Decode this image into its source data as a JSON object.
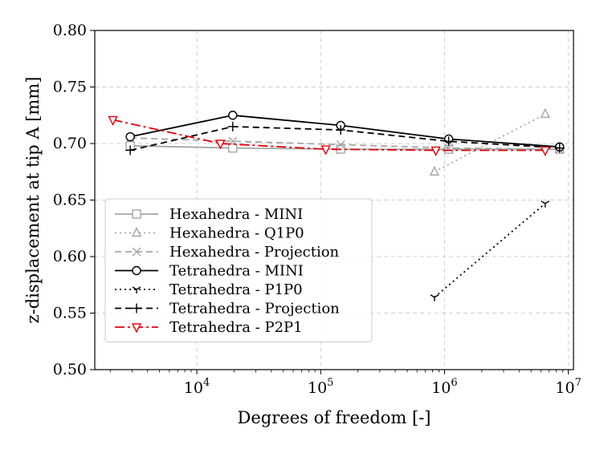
{
  "chart_data": {
    "type": "line",
    "xscale": "log",
    "xlabel": "Degrees of freedom [-]",
    "ylabel": "z-displacement at tip A [mm]",
    "xlim": [
      1500,
      11000000
    ],
    "ylim": [
      0.5,
      0.8
    ],
    "x_ticks": [
      {
        "value": 10000,
        "base": "10",
        "exp": "4"
      },
      {
        "value": 100000,
        "base": "10",
        "exp": "5"
      },
      {
        "value": 1000000,
        "base": "10",
        "exp": "6"
      },
      {
        "value": 10000000,
        "base": "10",
        "exp": "7"
      }
    ],
    "y_ticks": [
      "0.50",
      "0.55",
      "0.60",
      "0.65",
      "0.70",
      "0.75",
      "0.80"
    ],
    "grid": true,
    "legend_position": "lower-left",
    "series": [
      {
        "name": "Hexahedra - MINI",
        "color": "#a6a6a6",
        "dash": "",
        "marker": "square",
        "x": [
          2900,
          19500,
          145000,
          1080000,
          8500000
        ],
        "y": [
          0.698,
          0.696,
          0.695,
          0.695,
          0.695
        ]
      },
      {
        "name": "Hexahedra - Q1P0",
        "color": "#a6a6a6",
        "dash": "2 4",
        "marker": "triangle-up",
        "x": [
          830000,
          6500000
        ],
        "y": [
          0.675,
          0.726
        ]
      },
      {
        "name": "Hexahedra - Projection",
        "color": "#a6a6a6",
        "dash": "8 5",
        "marker": "x",
        "x": [
          2900,
          19500,
          145000,
          1080000,
          8500000
        ],
        "y": [
          0.705,
          0.702,
          0.699,
          0.696,
          0.695
        ]
      },
      {
        "name": "Tetrahedra - MINI",
        "color": "#000000",
        "dash": "",
        "marker": "circle",
        "x": [
          2900,
          19500,
          145000,
          1080000,
          8500000
        ],
        "y": [
          0.706,
          0.725,
          0.716,
          0.704,
          0.697
        ]
      },
      {
        "name": "Tetrahedra - P1P0",
        "color": "#000000",
        "dash": "2 4",
        "marker": "tri-down",
        "x": [
          830000,
          6500000
        ],
        "y": [
          0.564,
          0.647
        ]
      },
      {
        "name": "Tetrahedra - Projection",
        "color": "#000000",
        "dash": "8 5",
        "marker": "plus",
        "x": [
          2900,
          19500,
          145000,
          1080000,
          8500000
        ],
        "y": [
          0.694,
          0.715,
          0.712,
          0.702,
          0.696
        ]
      },
      {
        "name": "Tetrahedra - P2P1",
        "color": "#e8000b",
        "dash": "12 4 3 4",
        "marker": "triangle-down",
        "x": [
          2100,
          15500,
          110000,
          850000,
          6500000
        ],
        "y": [
          0.721,
          0.7,
          0.695,
          0.694,
          0.694
        ]
      }
    ]
  }
}
